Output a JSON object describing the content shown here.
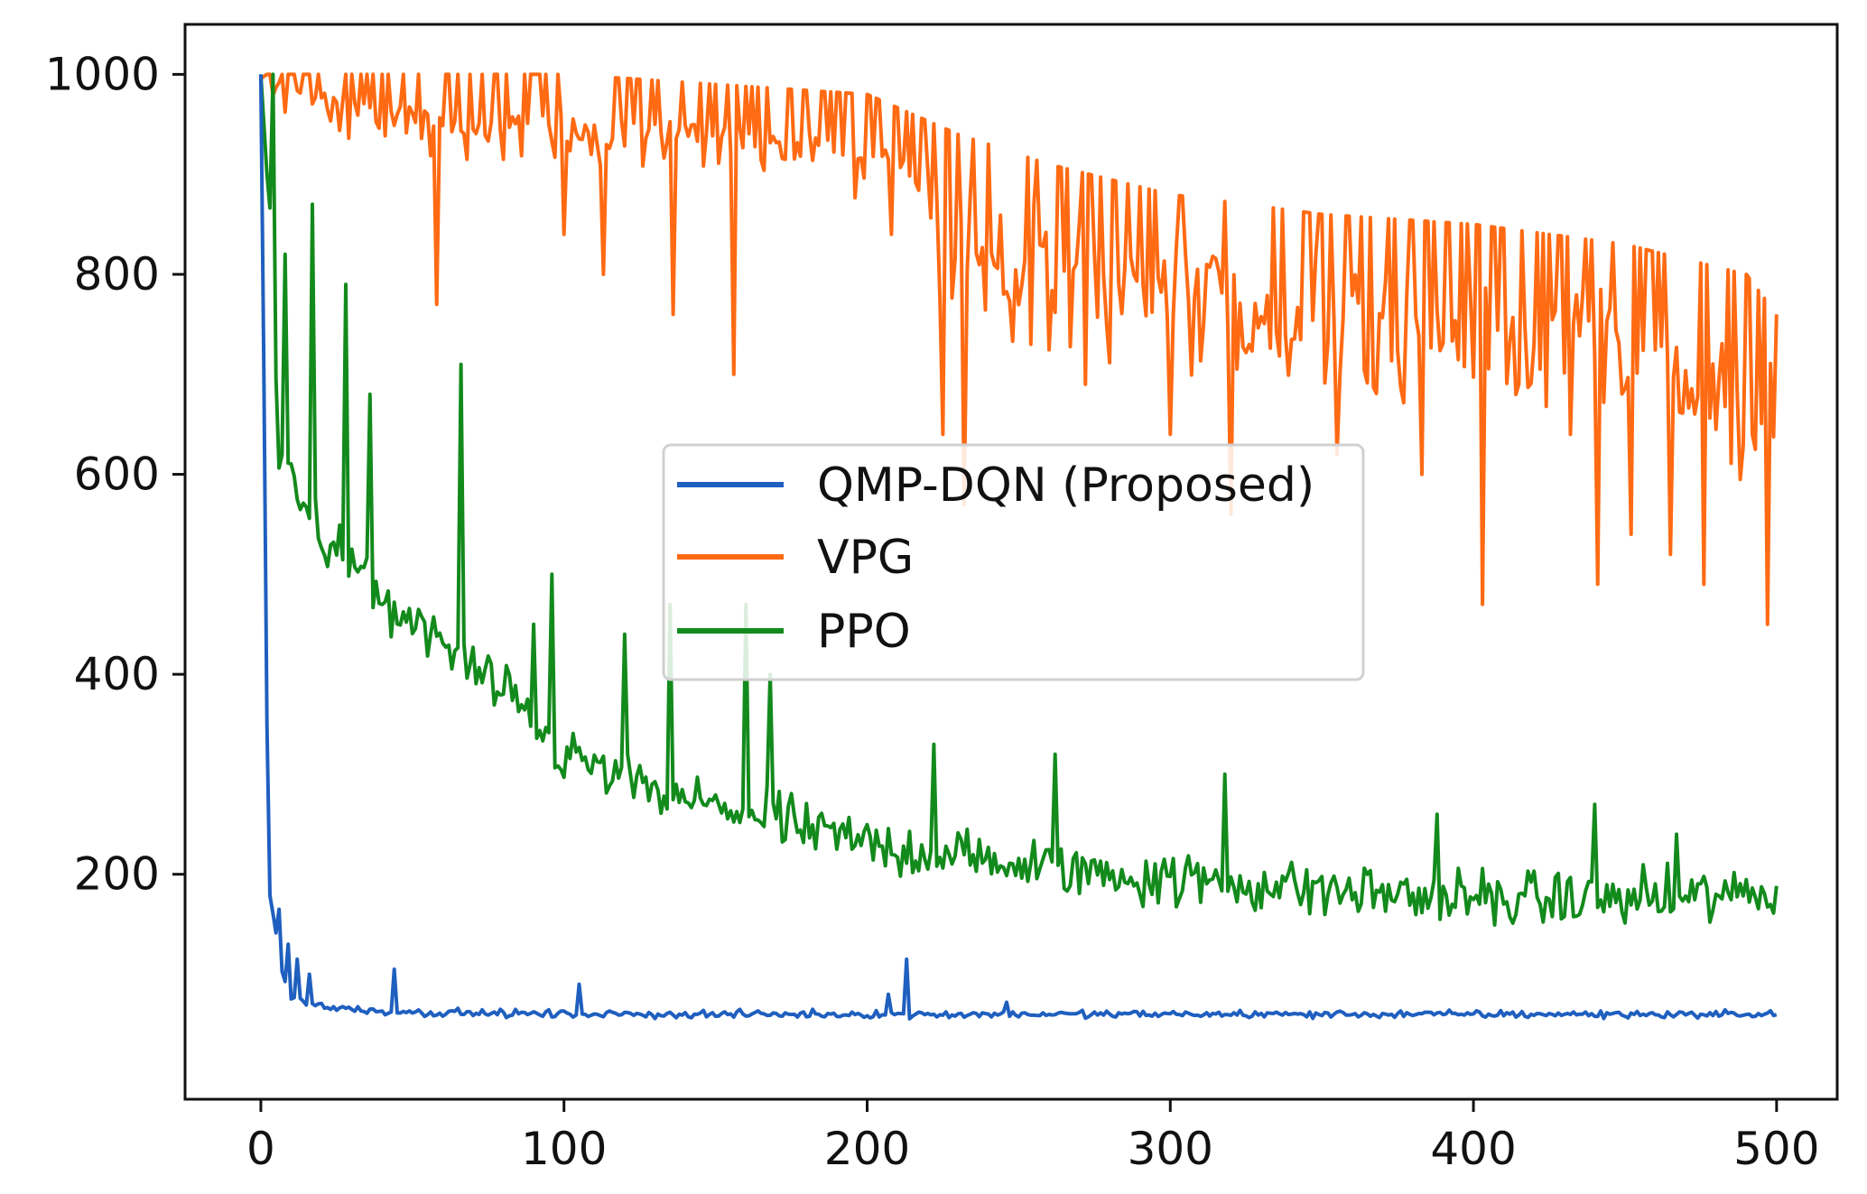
{
  "chart_data": {
    "type": "line",
    "title": "",
    "xlabel": "",
    "ylabel": "",
    "xlim": [
      -25,
      520
    ],
    "ylim": [
      -25,
      1050
    ],
    "xticks": [
      0,
      100,
      200,
      300,
      400,
      500
    ],
    "yticks": [
      200,
      400,
      600,
      800,
      1000
    ],
    "grid": false,
    "legend": {
      "position": "center",
      "entries": [
        "QMP-DQN (Proposed)",
        "VPG",
        "PPO"
      ]
    },
    "series": [
      {
        "name": "QMP-DQN (Proposed)",
        "color": "#1f5fbf",
        "trend": [
          [
            0,
            1000
          ],
          [
            1,
            700
          ],
          [
            2,
            350
          ],
          [
            3,
            180
          ],
          [
            4,
            160
          ],
          [
            6,
            120
          ],
          [
            8,
            90
          ],
          [
            10,
            75
          ],
          [
            15,
            72
          ],
          [
            20,
            68
          ],
          [
            30,
            65
          ],
          [
            50,
            62
          ],
          [
            100,
            60
          ],
          [
            200,
            60
          ],
          [
            300,
            60
          ],
          [
            400,
            60
          ],
          [
            500,
            60
          ]
        ],
        "spikes": [
          [
            6,
            165
          ],
          [
            9,
            130
          ],
          [
            12,
            115
          ],
          [
            16,
            100
          ],
          [
            44,
            105
          ],
          [
            105,
            90
          ],
          [
            207,
            80
          ],
          [
            213,
            115
          ],
          [
            246,
            72
          ]
        ],
        "noise": 5
      },
      {
        "name": "VPG",
        "color": "#ff6a13",
        "trend": [
          [
            0,
            1000
          ],
          [
            30,
            975
          ],
          [
            60,
            965
          ],
          [
            100,
            960
          ],
          [
            150,
            950
          ],
          [
            200,
            940
          ],
          [
            230,
            900
          ],
          [
            260,
            870
          ],
          [
            300,
            840
          ],
          [
            350,
            820
          ],
          [
            400,
            810
          ],
          [
            450,
            790
          ],
          [
            490,
            760
          ],
          [
            500,
            720
          ]
        ],
        "spikes": [
          [
            58,
            770
          ],
          [
            100,
            840
          ],
          [
            113,
            800
          ],
          [
            136,
            760
          ],
          [
            156,
            700
          ],
          [
            208,
            840
          ],
          [
            225,
            640
          ],
          [
            232,
            570
          ],
          [
            254,
            730
          ],
          [
            272,
            690
          ],
          [
            300,
            640
          ],
          [
            320,
            560
          ],
          [
            355,
            620
          ],
          [
            383,
            600
          ],
          [
            403,
            470
          ],
          [
            432,
            640
          ],
          [
            441,
            490
          ],
          [
            452,
            540
          ],
          [
            465,
            520
          ],
          [
            476,
            490
          ],
          [
            492,
            640
          ],
          [
            497,
            450
          ]
        ],
        "noise": 45,
        "cap": 1000
      },
      {
        "name": "PPO",
        "color": "#138a1c",
        "trend": [
          [
            0,
            1000
          ],
          [
            3,
            850
          ],
          [
            6,
            620
          ],
          [
            10,
            600
          ],
          [
            20,
            540
          ],
          [
            40,
            470
          ],
          [
            60,
            430
          ],
          [
            80,
            380
          ],
          [
            100,
            320
          ],
          [
            130,
            280
          ],
          [
            160,
            260
          ],
          [
            200,
            230
          ],
          [
            250,
            210
          ],
          [
            300,
            195
          ],
          [
            350,
            185
          ],
          [
            400,
            175
          ],
          [
            450,
            175
          ],
          [
            500,
            180
          ]
        ],
        "spikes": [
          [
            4,
            1000
          ],
          [
            8,
            820
          ],
          [
            17,
            870
          ],
          [
            28,
            790
          ],
          [
            36,
            680
          ],
          [
            66,
            710
          ],
          [
            80,
            380
          ],
          [
            90,
            450
          ],
          [
            96,
            500
          ],
          [
            120,
            440
          ],
          [
            135,
            470
          ],
          [
            160,
            470
          ],
          [
            168,
            400
          ],
          [
            222,
            330
          ],
          [
            262,
            320
          ],
          [
            318,
            300
          ],
          [
            388,
            260
          ],
          [
            440,
            270
          ],
          [
            467,
            240
          ]
        ],
        "noise": 38
      }
    ]
  }
}
